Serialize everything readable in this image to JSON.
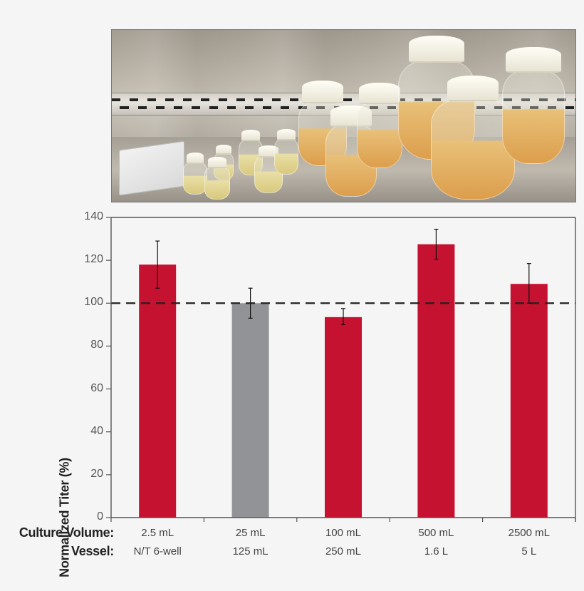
{
  "photo": {
    "description": "Culture flasks of increasing size on stainless steel biosafety cabinet shelf",
    "colors": {
      "liquid_light": "#e6d9a0",
      "liquid_dark": "#e0a858",
      "cap": "#f5f2e6"
    }
  },
  "colors": {
    "bar_red": "#c41230",
    "bar_gray": "#929396",
    "background": "#f5f5f5",
    "axis": "#555555",
    "reference_line": "#222222"
  },
  "chart_data": {
    "type": "bar",
    "title": "",
    "xlabel": "",
    "ylabel": "Normalized Titer (%)",
    "ylim": [
      0,
      140
    ],
    "yticks": [
      0,
      20,
      40,
      60,
      80,
      100,
      120,
      140
    ],
    "grid": false,
    "legend": null,
    "reference_line": {
      "y": 100,
      "style": "dashed"
    },
    "row_headers": [
      "Culture Volume:",
      "Vessel:"
    ],
    "categories": [
      {
        "culture_volume": "2.5 mL",
        "vessel": "N/T 6-well"
      },
      {
        "culture_volume": "25 mL",
        "vessel": "125 mL"
      },
      {
        "culture_volume": "100 mL",
        "vessel": "250 mL"
      },
      {
        "culture_volume": "500 mL",
        "vessel": "1.6 L"
      },
      {
        "culture_volume": "2500 mL",
        "vessel": "5 L"
      }
    ],
    "values": [
      118,
      100,
      93.5,
      127.5,
      109
    ],
    "error_bars": [
      {
        "low": 107,
        "high": 129
      },
      {
        "low": 93,
        "high": 107
      },
      {
        "low": 90,
        "high": 97.5
      },
      {
        "low": 120.5,
        "high": 134.5
      },
      {
        "low": 100,
        "high": 118.5
      }
    ],
    "bar_colors": [
      "#c41230",
      "#929396",
      "#c41230",
      "#c41230",
      "#c41230"
    ]
  }
}
